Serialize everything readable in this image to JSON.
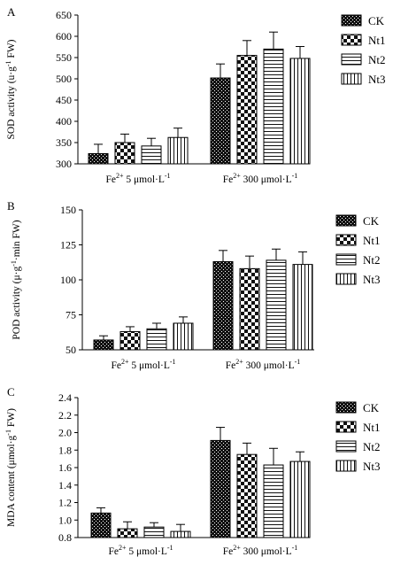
{
  "chart_data": [
    {
      "panel_label": "A",
      "type": "bar",
      "categories_main": [
        "Fe",
        "Fe"
      ],
      "categories_sup": [
        "2+",
        "2+"
      ],
      "categories_rest": [
        " 5 μmol·L",
        " 300 μmol·L"
      ],
      "categories_unit_sup": [
        "-1",
        "-1"
      ],
      "ylabel_parts": [
        "SOD activity (u·g",
        "-1",
        " FW)"
      ],
      "ylim": [
        300,
        650
      ],
      "yticks": [
        300,
        350,
        400,
        450,
        500,
        550,
        600,
        650
      ],
      "ytick_labels": [
        "300",
        "350",
        "400",
        "450",
        "500",
        "550",
        "600",
        "650"
      ],
      "legend_position": "right",
      "series": [
        {
          "name": "CK",
          "values": [
            324,
            502
          ],
          "errors": [
            22,
            33
          ]
        },
        {
          "name": "Nt1",
          "values": [
            350,
            555
          ],
          "errors": [
            20,
            35
          ]
        },
        {
          "name": "Nt2",
          "values": [
            342,
            570
          ],
          "errors": [
            18,
            40
          ]
        },
        {
          "name": "Nt3",
          "values": [
            362,
            548
          ],
          "errors": [
            22,
            28
          ]
        }
      ]
    },
    {
      "panel_label": "B",
      "type": "bar",
      "categories_main": [
        "Fe",
        "Fe"
      ],
      "categories_sup": [
        "2+",
        "2+"
      ],
      "categories_rest": [
        " 5 μmol·L",
        " 300 μmol·L"
      ],
      "categories_unit_sup": [
        "-1",
        "-1"
      ],
      "ylabel_parts": [
        "POD activity (μ·g",
        "-1",
        "·min FW)"
      ],
      "ylim": [
        50,
        150
      ],
      "yticks": [
        50,
        75,
        100,
        125,
        150
      ],
      "ytick_labels": [
        "50",
        "75",
        "100",
        "125",
        "150"
      ],
      "legend_position": "right",
      "series": [
        {
          "name": "CK",
          "values": [
            57,
            113
          ],
          "errors": [
            3,
            8
          ]
        },
        {
          "name": "Nt1",
          "values": [
            63,
            108
          ],
          "errors": [
            3.5,
            9
          ]
        },
        {
          "name": "Nt2",
          "values": [
            65,
            114
          ],
          "errors": [
            4,
            8
          ]
        },
        {
          "name": "Nt3",
          "values": [
            69,
            111
          ],
          "errors": [
            4.5,
            9
          ]
        }
      ]
    },
    {
      "panel_label": "C",
      "type": "bar",
      "categories_main": [
        "Fe",
        "Fe"
      ],
      "categories_sup": [
        "2+",
        "2+"
      ],
      "categories_rest": [
        " 5 μmol·L",
        " 300 μmol·L"
      ],
      "categories_unit_sup": [
        "-1",
        "-1"
      ],
      "ylabel_parts": [
        "MDA content (μmol·g",
        "-1",
        " FW)"
      ],
      "ylim": [
        0.8,
        2.4
      ],
      "yticks": [
        0.8,
        1.0,
        1.2,
        1.4,
        1.6,
        1.8,
        2.0,
        2.2,
        2.4
      ],
      "ytick_labels": [
        "0.8",
        "1.0",
        "1.2",
        "1.4",
        "1.6",
        "1.8",
        "2.0",
        "2.2",
        "2.4"
      ],
      "legend_position": "right",
      "series": [
        {
          "name": "CK",
          "values": [
            1.08,
            1.91
          ],
          "errors": [
            0.06,
            0.15
          ]
        },
        {
          "name": "Nt1",
          "values": [
            0.9,
            1.75
          ],
          "errors": [
            0.08,
            0.13
          ]
        },
        {
          "name": "Nt2",
          "values": [
            0.92,
            1.63
          ],
          "errors": [
            0.05,
            0.19
          ]
        },
        {
          "name": "Nt3",
          "values": [
            0.87,
            1.67
          ],
          "errors": [
            0.08,
            0.11
          ]
        }
      ]
    }
  ]
}
